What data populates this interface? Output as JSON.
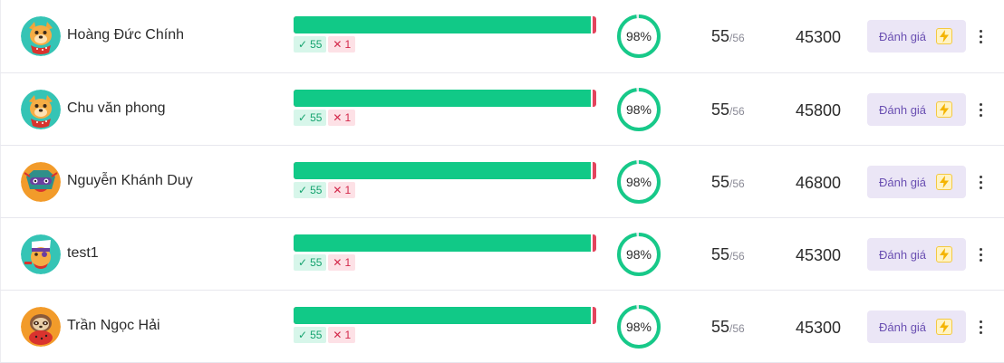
{
  "colors": {
    "correct": "#11c987",
    "wrong": "#e3445d",
    "ring": "#17c989",
    "button_bg": "#ebe6f6",
    "button_text": "#6a4fb2"
  },
  "rows": [
    {
      "name": "Hoàng Đức Chính",
      "avatar_icon": "cartoon-dog-red-scarf-avatar",
      "correct_count": "55",
      "wrong_count": "1",
      "correct_fraction": 0.982,
      "accuracy": "98%",
      "accuracy_value": 0.98,
      "score": "55",
      "score_total": "/56",
      "points": "45300",
      "rate_label": "Đánh giá",
      "rate_icon": "lightning-bolt-icon"
    },
    {
      "name": "Chu văn phong",
      "avatar_icon": "cartoon-dog-red-scarf-avatar",
      "correct_count": "55",
      "wrong_count": "1",
      "correct_fraction": 0.982,
      "accuracy": "98%",
      "accuracy_value": 0.98,
      "score": "55",
      "score_total": "/56",
      "points": "45800",
      "rate_label": "Đánh giá",
      "rate_icon": "lightning-bolt-icon"
    },
    {
      "name": "Nguyễn Khánh Duy",
      "avatar_icon": "cartoon-masked-creature-avatar",
      "correct_count": "55",
      "wrong_count": "1",
      "correct_fraction": 0.982,
      "accuracy": "98%",
      "accuracy_value": 0.98,
      "score": "55",
      "score_total": "/56",
      "points": "46800",
      "rate_label": "Đánh giá",
      "rate_icon": "lightning-bolt-icon"
    },
    {
      "name": "test1",
      "avatar_icon": "cartoon-pirate-avatar",
      "correct_count": "55",
      "wrong_count": "1",
      "correct_fraction": 0.982,
      "accuracy": "98%",
      "accuracy_value": 0.98,
      "score": "55",
      "score_total": "/56",
      "points": "45300",
      "rate_label": "Đánh giá",
      "rate_icon": "lightning-bolt-icon"
    },
    {
      "name": "Trần Ngọc Hải",
      "avatar_icon": "cartoon-sloth-avatar",
      "correct_count": "55",
      "wrong_count": "1",
      "correct_fraction": 0.982,
      "accuracy": "98%",
      "accuracy_value": 0.98,
      "score": "55",
      "score_total": "/56",
      "points": "45300",
      "rate_label": "Đánh giá",
      "rate_icon": "lightning-bolt-icon"
    }
  ]
}
